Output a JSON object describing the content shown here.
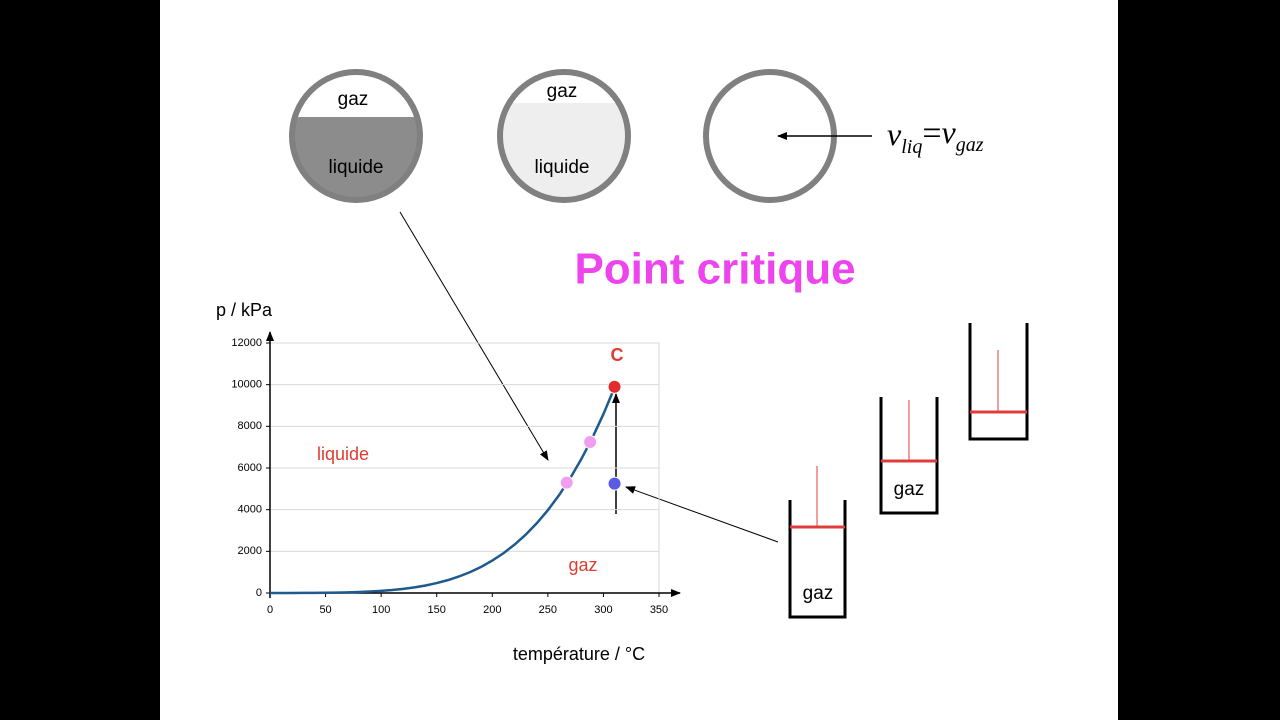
{
  "slide": {
    "title": "Point critique",
    "circles": [
      {
        "top": "gaz",
        "bottom": "liquide"
      },
      {
        "top": "gaz",
        "bottom": "liquide"
      }
    ],
    "formula": {
      "lhs": "v",
      "lhs_sub": "liq",
      "eq": "=",
      "rhs": "v",
      "rhs_sub": "gaz"
    },
    "cylinders": [
      "gaz",
      "gaz"
    ]
  },
  "chart_data": {
    "type": "line",
    "xlabel": "température / °C",
    "ylabel": "p / kPa",
    "x": [
      0,
      10,
      20,
      30,
      40,
      50,
      60,
      70,
      80,
      90,
      100,
      110,
      120,
      130,
      140,
      150,
      160,
      170,
      180,
      190,
      200,
      210,
      220,
      230,
      240,
      250,
      260,
      270,
      280,
      290,
      300,
      310
    ],
    "values": [
      0.6,
      1.2,
      2.3,
      4.2,
      7.4,
      12.3,
      19.9,
      31.2,
      47.4,
      70.1,
      101,
      143,
      199,
      270,
      361,
      476,
      618,
      792,
      1003,
      1255,
      1555,
      1908,
      2320,
      2797,
      3347,
      3976,
      4692,
      5503,
      6417,
      7442,
      8588,
      9865
    ],
    "color": "#1f5a8f",
    "points": {
      "x": [
        267,
        288,
        310,
        310
      ],
      "y": [
        5300,
        7250,
        5250,
        9900
      ],
      "colors": [
        "#f09ef0",
        "#f09ef0",
        "#5a5ae6",
        "#e02c2c"
      ]
    },
    "annotations": [
      "liquide",
      "gaz",
      "C"
    ],
    "annotation_color": "#e03c31",
    "xlim": [
      0,
      350
    ],
    "xticks": [
      0,
      50,
      100,
      150,
      200,
      250,
      300,
      350
    ],
    "ylim": [
      0,
      12000
    ],
    "yticks": [
      0,
      2000,
      4000,
      6000,
      8000,
      10000,
      12000
    ],
    "grid": true
  }
}
